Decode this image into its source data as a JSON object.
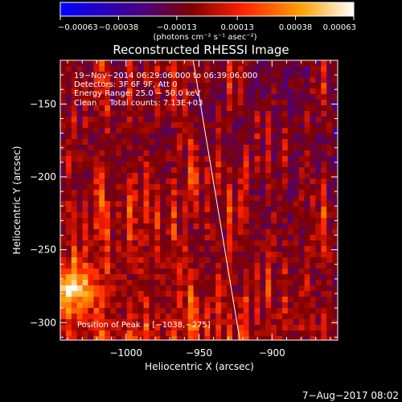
{
  "chart_data": {
    "type": "heatmap",
    "title": "Reconstructed RHESSI Image",
    "xlabel": "Heliocentric X (arcsec)",
    "ylabel": "Heliocentric Y (arcsec)",
    "xlim": [
      -1045,
      -855
    ],
    "ylim": [
      -312,
      -120
    ],
    "xticks": [
      -1000,
      -950,
      -900
    ],
    "xtick_labels": [
      "−1000",
      "−950",
      "−900"
    ],
    "yticks": [
      -150,
      -200,
      -250,
      -300
    ],
    "ytick_labels": [
      "−150",
      "−200",
      "−250",
      "−300"
    ],
    "colorbar": {
      "min": -0.00063,
      "max": 0.00063,
      "ticks": [
        -0.00063,
        -0.00038,
        -0.00013,
        0.00013,
        0.00038,
        0.00063
      ],
      "tick_labels": [
        "−0.00063",
        "−0.00038",
        "−0.00013",
        "0.00013",
        "0.00038",
        "0.00063"
      ],
      "unit_label": "(photons cm⁻² s⁻¹ asec⁻²)",
      "colors": [
        "#0000ff",
        "#4a0080",
        "#800000",
        "#ff2000",
        "#ffa000",
        "#ffffff"
      ]
    },
    "annotations": [
      "19−Nov−2014 06:29:06.000 to 06:39:06.000",
      "Detectors: 3F 6F 9F, Att 0",
      "Energy Range: 25.0 − 50.0 keV",
      "Clean     Total counts: 7.13E+03"
    ],
    "peak_label": "Position of Peak = [−1038,−275]",
    "peak_position": [
      -1038,
      -275
    ],
    "limb_line": [
      [
        -954,
        -120
      ],
      [
        -922,
        -312
      ]
    ],
    "date_stamp": "7−Aug−2017 08:02"
  }
}
